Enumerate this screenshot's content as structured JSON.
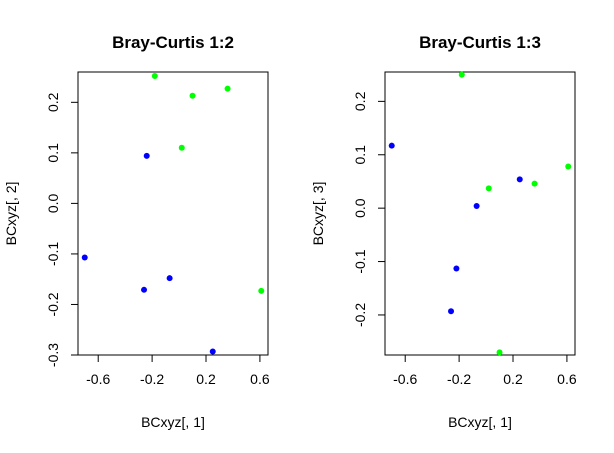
{
  "chart_data": [
    {
      "type": "scatter",
      "title": "Bray-Curtis 1:2",
      "xlabel": "BCxyz[, 1]",
      "ylabel": "BCxyz[, 2]",
      "xlim": [
        -0.75,
        0.66
      ],
      "ylim": [
        -0.3,
        0.26
      ],
      "xticks": [
        -0.6,
        -0.2,
        0.2,
        0.6
      ],
      "xtick_labels": [
        "-0.6",
        "-0.2",
        "0.2",
        "0.6"
      ],
      "yticks": [
        -0.3,
        -0.2,
        -0.1,
        0.0,
        0.1,
        0.2
      ],
      "ytick_labels": [
        "-0.3",
        "-0.2",
        "-0.1",
        "0.0",
        "0.1",
        "0.2"
      ],
      "series": [
        {
          "color": "#0000ff",
          "points": [
            {
              "x": -0.7,
              "y": -0.107
            },
            {
              "x": -0.24,
              "y": 0.094
            },
            {
              "x": -0.26,
              "y": -0.171
            },
            {
              "x": -0.07,
              "y": -0.148
            },
            {
              "x": 0.25,
              "y": -0.293
            }
          ]
        },
        {
          "color": "#00ff00",
          "points": [
            {
              "x": -0.18,
              "y": 0.252
            },
            {
              "x": 0.1,
              "y": 0.213
            },
            {
              "x": 0.36,
              "y": 0.227
            },
            {
              "x": 0.02,
              "y": 0.11
            },
            {
              "x": 0.61,
              "y": -0.173
            }
          ]
        }
      ]
    },
    {
      "type": "scatter",
      "title": "Bray-Curtis 1:3",
      "xlabel": "BCxyz[, 1]",
      "ylabel": "BCxyz[, 3]",
      "xlim": [
        -0.75,
        0.66
      ],
      "ylim": [
        -0.275,
        0.255
      ],
      "xticks": [
        -0.6,
        -0.2,
        0.2,
        0.6
      ],
      "xtick_labels": [
        "-0.6",
        "-0.2",
        "0.2",
        "0.6"
      ],
      "yticks": [
        -0.2,
        -0.1,
        0.0,
        0.1,
        0.2
      ],
      "ytick_labels": [
        "-0.2",
        "-0.1",
        "0.0",
        "0.1",
        "0.2"
      ],
      "series": [
        {
          "color": "#0000ff",
          "points": [
            {
              "x": -0.7,
              "y": 0.117
            },
            {
              "x": -0.22,
              "y": -0.113
            },
            {
              "x": -0.26,
              "y": -0.193
            },
            {
              "x": -0.07,
              "y": 0.004
            },
            {
              "x": 0.25,
              "y": 0.054
            }
          ]
        },
        {
          "color": "#00ff00",
          "points": [
            {
              "x": -0.18,
              "y": 0.25
            },
            {
              "x": 0.02,
              "y": 0.037
            },
            {
              "x": 0.36,
              "y": 0.046
            },
            {
              "x": 0.61,
              "y": 0.078
            },
            {
              "x": 0.1,
              "y": -0.27
            }
          ]
        }
      ]
    }
  ]
}
